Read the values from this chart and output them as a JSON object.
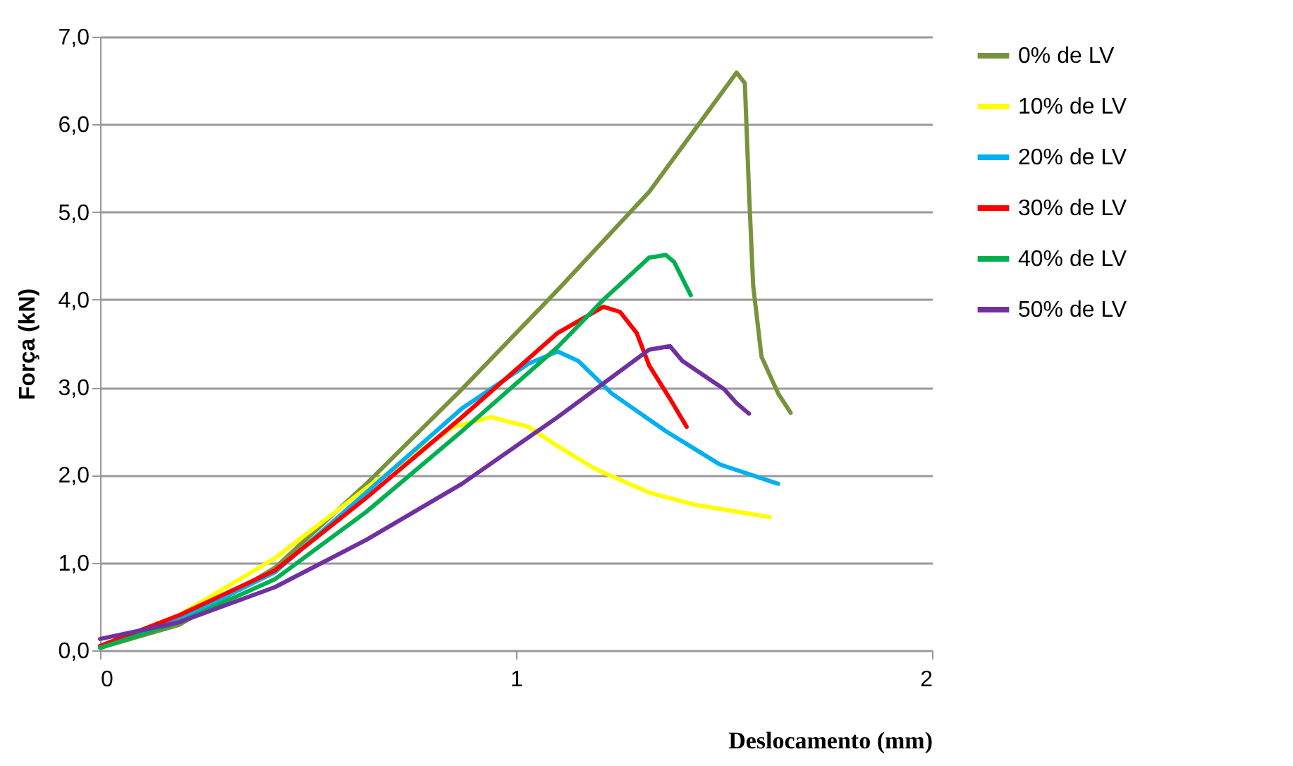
{
  "chart_data": {
    "type": "line",
    "xlabel": "Deslocamento (mm)",
    "ylabel": "Força (kN)",
    "xlim": [
      0,
      2
    ],
    "xticks": [
      0,
      1,
      2
    ],
    "ylim": [
      0,
      7
    ],
    "yticks": [
      {
        "value": 0,
        "label": "0,0"
      },
      {
        "value": 1,
        "label": "1,0"
      },
      {
        "value": 2,
        "label": "2,0"
      },
      {
        "value": 3,
        "label": "3,0"
      },
      {
        "value": 4,
        "label": "4,0"
      },
      {
        "value": 5,
        "label": "5,0"
      },
      {
        "value": 6,
        "label": "6,0"
      },
      {
        "value": 7,
        "label": "7,0"
      }
    ],
    "grid": "y",
    "legend": "right",
    "line_style": "solid",
    "marker": "none",
    "series": [
      {
        "name": "0% de LV",
        "color": "#77933c",
        "x": [
          0,
          0.19,
          0.42,
          0.64,
          0.87,
          1.1,
          1.32,
          1.53,
          1.55,
          1.56,
          1.57,
          1.59,
          1.63,
          1.66
        ],
        "values": [
          0.03,
          0.29,
          0.94,
          1.9,
          2.98,
          4.11,
          5.23,
          6.59,
          6.47,
          5.23,
          4.16,
          3.35,
          2.93,
          2.71
        ]
      },
      {
        "name": "10% de LV",
        "color": "#ffff00",
        "x": [
          0,
          0.19,
          0.42,
          0.64,
          0.85,
          0.94,
          1.03,
          1.1,
          1.19,
          1.32,
          1.43,
          1.61
        ],
        "values": [
          0.05,
          0.4,
          1.05,
          1.85,
          2.55,
          2.66,
          2.55,
          2.33,
          2.07,
          1.8,
          1.66,
          1.52
        ]
      },
      {
        "name": "20% de LV",
        "color": "#00b0f0",
        "x": [
          0,
          0.19,
          0.42,
          0.64,
          0.87,
          1.03,
          1.1,
          1.15,
          1.23,
          1.36,
          1.49,
          1.63
        ],
        "values": [
          0.03,
          0.35,
          0.89,
          1.8,
          2.76,
          3.27,
          3.41,
          3.3,
          2.93,
          2.5,
          2.12,
          1.9
        ]
      },
      {
        "name": "30% de LV",
        "color": "#ff0000",
        "x": [
          0,
          0.19,
          0.42,
          0.64,
          0.87,
          1.1,
          1.21,
          1.25,
          1.29,
          1.32,
          1.37,
          1.41
        ],
        "values": [
          0.05,
          0.4,
          0.91,
          1.74,
          2.66,
          3.62,
          3.92,
          3.86,
          3.62,
          3.25,
          2.87,
          2.55
        ]
      },
      {
        "name": "40% de LV",
        "color": "#00b050",
        "x": [
          0,
          0.19,
          0.42,
          0.64,
          0.87,
          1.1,
          1.21,
          1.32,
          1.36,
          1.38,
          1.42
        ],
        "values": [
          0.03,
          0.32,
          0.81,
          1.58,
          2.5,
          3.46,
          4.0,
          4.48,
          4.51,
          4.43,
          4.05
        ]
      },
      {
        "name": "50% de LV",
        "color": "#7030a0",
        "x": [
          0,
          0.19,
          0.42,
          0.64,
          0.87,
          1.1,
          1.32,
          1.37,
          1.4,
          1.5,
          1.53,
          1.56
        ],
        "values": [
          0.13,
          0.32,
          0.72,
          1.26,
          1.9,
          2.66,
          3.43,
          3.47,
          3.3,
          2.98,
          2.82,
          2.7
        ]
      }
    ]
  }
}
